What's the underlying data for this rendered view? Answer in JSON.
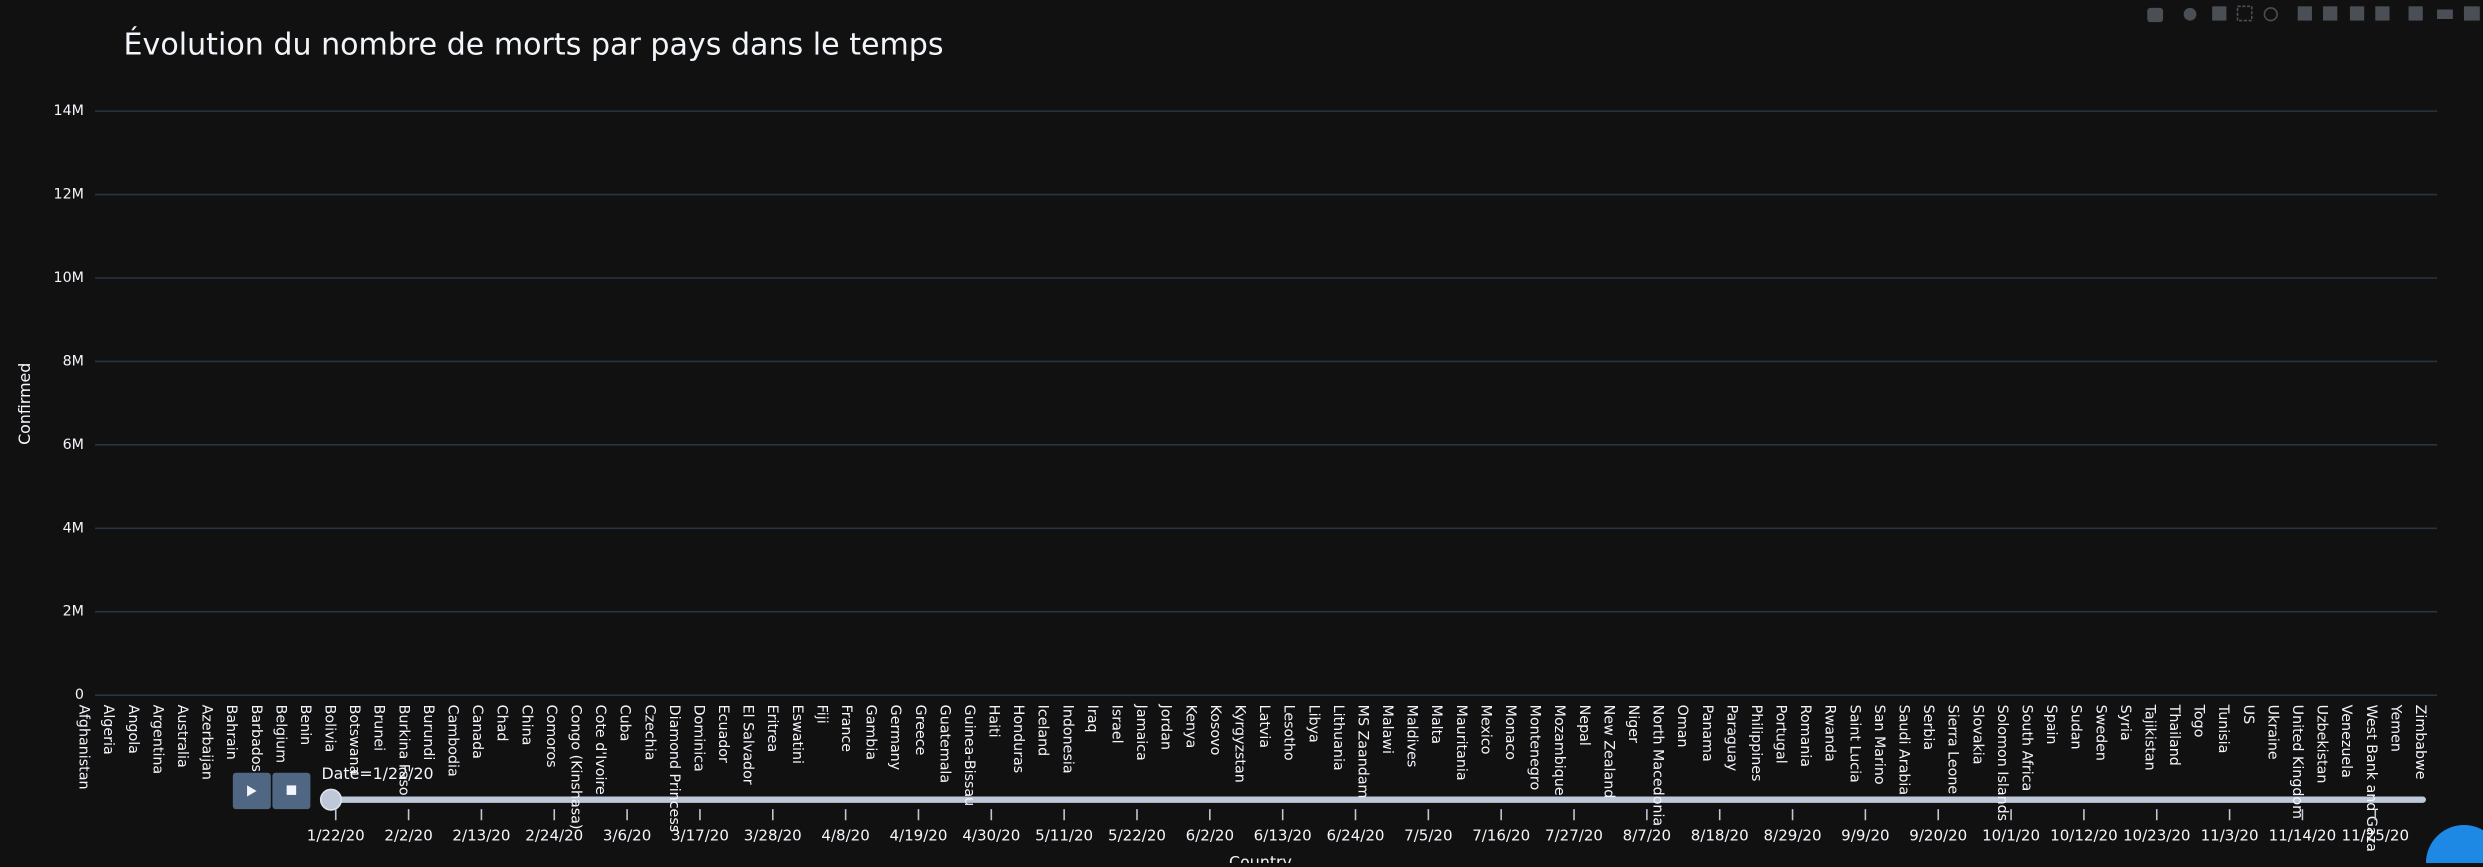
{
  "chart_data": {
    "type": "bar",
    "title": "Évolution du nombre de morts par pays dans le temps",
    "y_label": "Confirmed",
    "x_label": "Country",
    "color": "#636efa",
    "grid": true,
    "categories": [
      "Afghanistan",
      "Algeria",
      "Angola",
      "Argentina",
      "Australia",
      "Azerbaijan",
      "Bahrain",
      "Barbados",
      "Belgium",
      "Benin",
      "Bolivia",
      "Botswana",
      "Brunei",
      "Burkina Faso",
      "Burundi",
      "Cambodia",
      "Canada",
      "Chad",
      "China",
      "Comoros",
      "Congo (Kinshasa)",
      "Cote d'Ivoire",
      "Cuba",
      "Czechia",
      "Diamond Princess",
      "Dominica",
      "Ecuador",
      "El Salvador",
      "Eritrea",
      "Eswatini",
      "Fiji",
      "France",
      "Gambia",
      "Germany",
      "Greece",
      "Guatemala",
      "Guinea-Bissau",
      "Haiti",
      "Honduras",
      "Iceland",
      "Indonesia",
      "Iraq",
      "Israel",
      "Jamaica",
      "Jordan",
      "Kenya",
      "Kosovo",
      "Kyrgyzstan",
      "Latvia",
      "Lesotho",
      "Libya",
      "Lithuania",
      "MS Zaandam",
      "Malawi",
      "Maldives",
      "Malta",
      "Mauritania",
      "Mexico",
      "Monaco",
      "Montenegro",
      "Mozambique",
      "Nepal",
      "New Zealand",
      "Niger",
      "North Macedonia",
      "Oman",
      "Panama",
      "Paraguay",
      "Philippines",
      "Portugal",
      "Romania",
      "Rwanda",
      "Saint Lucia",
      "San Marino",
      "Saudi Arabia",
      "Serbia",
      "Sierra Leone",
      "Slovakia",
      "Solomon Islands",
      "South Africa",
      "Spain",
      "Sudan",
      "Sweden",
      "Syria",
      "Tajikistan",
      "Thailand",
      "Togo",
      "Tunisia",
      "US",
      "Ukraine",
      "United Kingdom",
      "Uzbekistan",
      "Venezuela",
      "West Bank and Gaza",
      "Yemen",
      "Zimbabwe"
    ],
    "values": [
      0,
      0,
      0,
      0,
      0,
      0,
      0,
      0,
      0,
      0,
      0,
      0,
      0,
      0,
      0,
      0,
      0,
      0,
      0,
      0,
      0,
      0,
      0,
      0,
      0,
      0,
      0,
      0,
      0,
      0,
      0,
      0,
      0,
      0,
      0,
      0,
      0,
      0,
      0,
      0,
      0,
      0,
      0,
      0,
      0,
      0,
      0,
      0,
      0,
      0,
      0,
      0,
      0,
      0,
      0,
      0,
      0,
      0,
      0,
      0,
      0,
      0,
      0,
      0,
      0,
      0,
      0,
      0,
      0,
      0,
      0,
      0,
      0,
      0,
      0,
      0,
      0,
      0,
      0,
      0,
      0,
      0,
      0,
      0,
      0,
      0,
      0,
      0,
      0,
      0,
      0,
      0,
      0,
      0,
      0,
      0
    ],
    "ylim": [
      0,
      14500000
    ],
    "yticks": [
      0,
      {
        "value": 2000000,
        "label": "2M"
      },
      {
        "value": 4000000,
        "label": "4M"
      },
      {
        "value": 6000000,
        "label": "6M"
      },
      {
        "value": 8000000,
        "label": "8M"
      },
      {
        "value": 10000000,
        "label": "10M"
      },
      {
        "value": 12000000,
        "label": "12M"
      },
      {
        "value": 14000000,
        "label": "14M"
      }
    ],
    "slider": {
      "current_label": "Date=1/22/20",
      "steps": [
        "1/22/20",
        "2/2/20",
        "2/13/20",
        "2/24/20",
        "3/6/20",
        "3/17/20",
        "3/28/20",
        "4/8/20",
        "4/19/20",
        "4/30/20",
        "5/11/20",
        "5/22/20",
        "6/2/20",
        "6/13/20",
        "6/24/20",
        "7/5/20",
        "7/16/20",
        "7/27/20",
        "8/7/20",
        "8/18/20",
        "8/29/20",
        "9/9/20",
        "9/20/20",
        "10/1/20",
        "10/12/20",
        "10/23/20",
        "11/3/20",
        "11/14/20",
        "11/25/20"
      ]
    }
  }
}
